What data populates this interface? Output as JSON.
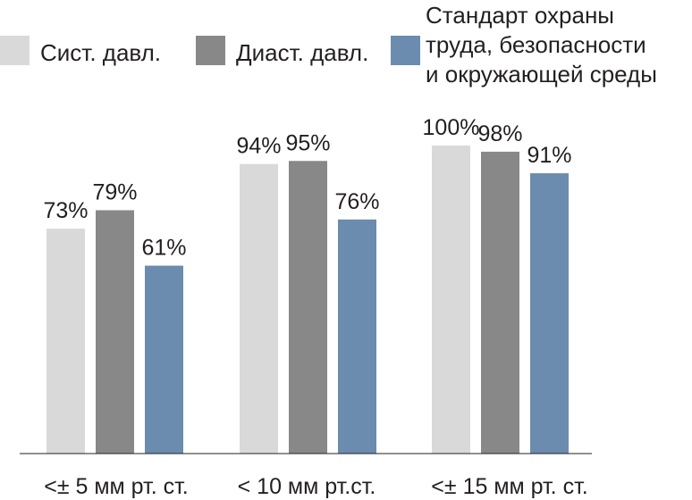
{
  "chart_data": {
    "type": "bar",
    "title": "",
    "xlabel": "",
    "ylabel": "",
    "ylim": [
      0,
      100
    ],
    "grid": false,
    "legend_position": "top",
    "categories": [
      "<± 5 мм рт. ст.",
      "< 10 мм рт.ст.",
      "<± 15 мм рт. ст."
    ],
    "series": [
      {
        "name": "Сист. давл.",
        "color": "#d9d9d9",
        "values": [
          73,
          94,
          100
        ],
        "labels": [
          "73%",
          "94%",
          "100%"
        ]
      },
      {
        "name": "Диаст. давл.",
        "color": "#888888",
        "values": [
          79,
          95,
          98
        ],
        "labels": [
          "79%",
          "95%",
          "98%"
        ]
      },
      {
        "name": "Стандарт охраны труда, безопасности и окружающей среды",
        "color": "#6b8cae",
        "values": [
          61,
          76,
          91
        ],
        "labels": [
          "61%",
          "76%",
          "91%"
        ]
      }
    ]
  }
}
